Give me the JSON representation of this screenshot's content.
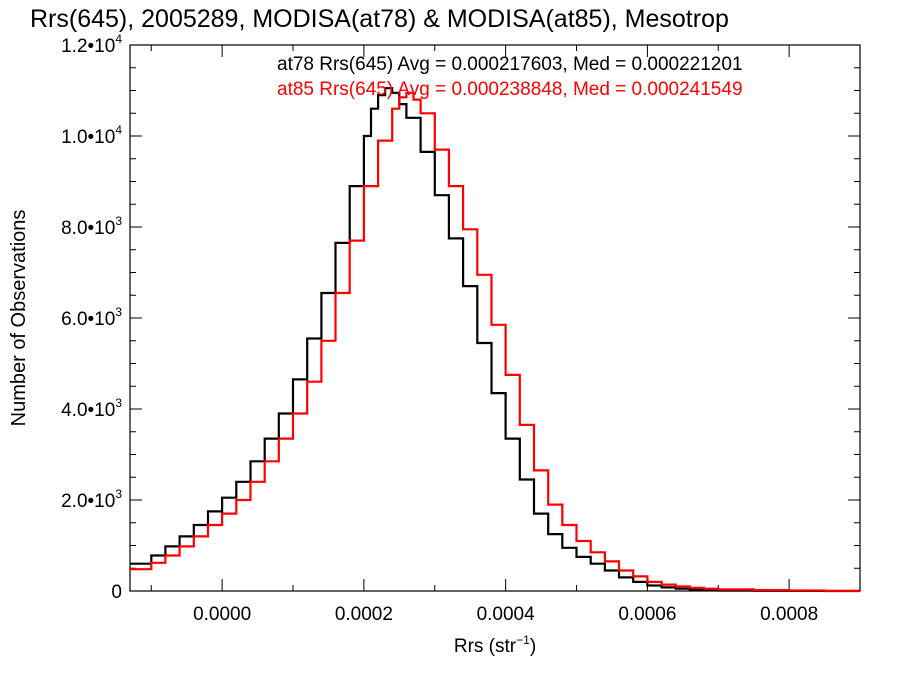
{
  "chart_data": {
    "type": "histogram",
    "title": "Rrs(645), 2005289, MODISA(at78) & MODISA(at85), Mesotrop",
    "xlabel_main": "Rrs (str",
    "xlabel_sup": "−1",
    "xlabel_end": ")",
    "ylabel": "Number of Observations",
    "xlim": [
      -0.00013,
      0.0009
    ],
    "ylim": [
      0,
      12000
    ],
    "xticks": [
      {
        "value": 0.0,
        "label": "0.0000"
      },
      {
        "value": 0.0002,
        "label": "0.0002"
      },
      {
        "value": 0.0004,
        "label": "0.0004"
      },
      {
        "value": 0.0006,
        "label": "0.0006"
      },
      {
        "value": 0.0008,
        "label": "0.0008"
      }
    ],
    "yticks": [
      {
        "value": 0,
        "mant": "0",
        "exp": ""
      },
      {
        "value": 2000,
        "mant": "2.0•10",
        "exp": "3"
      },
      {
        "value": 4000,
        "mant": "4.0•10",
        "exp": "3"
      },
      {
        "value": 6000,
        "mant": "6.0•10",
        "exp": "3"
      },
      {
        "value": 8000,
        "mant": "8.0•10",
        "exp": "3"
      },
      {
        "value": 10000,
        "mant": "1.0•10",
        "exp": "4"
      },
      {
        "value": 12000,
        "mant": "1.2•10",
        "exp": "4"
      }
    ],
    "series": [
      {
        "name": "at78 Rrs(645)",
        "color": "#000000",
        "annotation": "at78 Rrs(645) Avg = 0.000217603, Med = 0.000221201",
        "x": [
          -0.00013,
          -0.0001,
          -8e-05,
          -6e-05,
          -4e-05,
          -2e-05,
          0.0,
          2e-05,
          4e-05,
          6e-05,
          8e-05,
          0.0001,
          0.00012,
          0.00014,
          0.00016,
          0.00018,
          0.0002,
          0.00021,
          0.00022,
          0.00023,
          0.00024,
          0.00025,
          0.00026,
          0.00028,
          0.0003,
          0.00032,
          0.00034,
          0.00036,
          0.00038,
          0.0004,
          0.00042,
          0.00044,
          0.00046,
          0.00048,
          0.0005,
          0.00052,
          0.00054,
          0.00056,
          0.00058,
          0.0006,
          0.00062,
          0.00064,
          0.00066,
          0.00068,
          0.0007,
          0.00075,
          0.0008,
          0.00085,
          0.0009
        ],
        "y": [
          600,
          780,
          980,
          1200,
          1450,
          1750,
          2050,
          2400,
          2850,
          3350,
          3900,
          4650,
          5550,
          6550,
          7650,
          8900,
          10000,
          10600,
          10900,
          11050,
          10950,
          10700,
          10400,
          9650,
          8700,
          7750,
          6700,
          5450,
          4350,
          3350,
          2450,
          1700,
          1250,
          950,
          750,
          600,
          450,
          300,
          200,
          120,
          80,
          50,
          30,
          20,
          10,
          5,
          3,
          1,
          0
        ]
      },
      {
        "name": "at85 Rrs(645)",
        "color": "#ff0000",
        "annotation": "at85 Rrs(645) Avg = 0.000238848, Med = 0.000241549",
        "x": [
          -0.00013,
          -0.0001,
          -8e-05,
          -6e-05,
          -4e-05,
          -2e-05,
          0.0,
          2e-05,
          4e-05,
          6e-05,
          8e-05,
          0.0001,
          0.00012,
          0.00014,
          0.00016,
          0.00018,
          0.0002,
          0.00022,
          0.00024,
          0.00025,
          0.00026,
          0.00027,
          0.00028,
          0.0003,
          0.00032,
          0.00034,
          0.00036,
          0.00038,
          0.0004,
          0.00042,
          0.00044,
          0.00046,
          0.00048,
          0.0005,
          0.00052,
          0.00054,
          0.00056,
          0.00058,
          0.0006,
          0.00062,
          0.00064,
          0.00066,
          0.00068,
          0.0007,
          0.00075,
          0.0008,
          0.00085,
          0.0009
        ],
        "y": [
          480,
          620,
          780,
          980,
          1200,
          1450,
          1700,
          2000,
          2400,
          2850,
          3350,
          3900,
          4600,
          5500,
          6550,
          7700,
          8900,
          9900,
          10600,
          10850,
          10950,
          10800,
          10500,
          9700,
          8900,
          7950,
          6950,
          5850,
          4750,
          3650,
          2650,
          1900,
          1450,
          1100,
          850,
          650,
          450,
          320,
          200,
          140,
          100,
          70,
          50,
          35,
          20,
          10,
          5,
          0
        ]
      }
    ],
    "grid": false
  }
}
